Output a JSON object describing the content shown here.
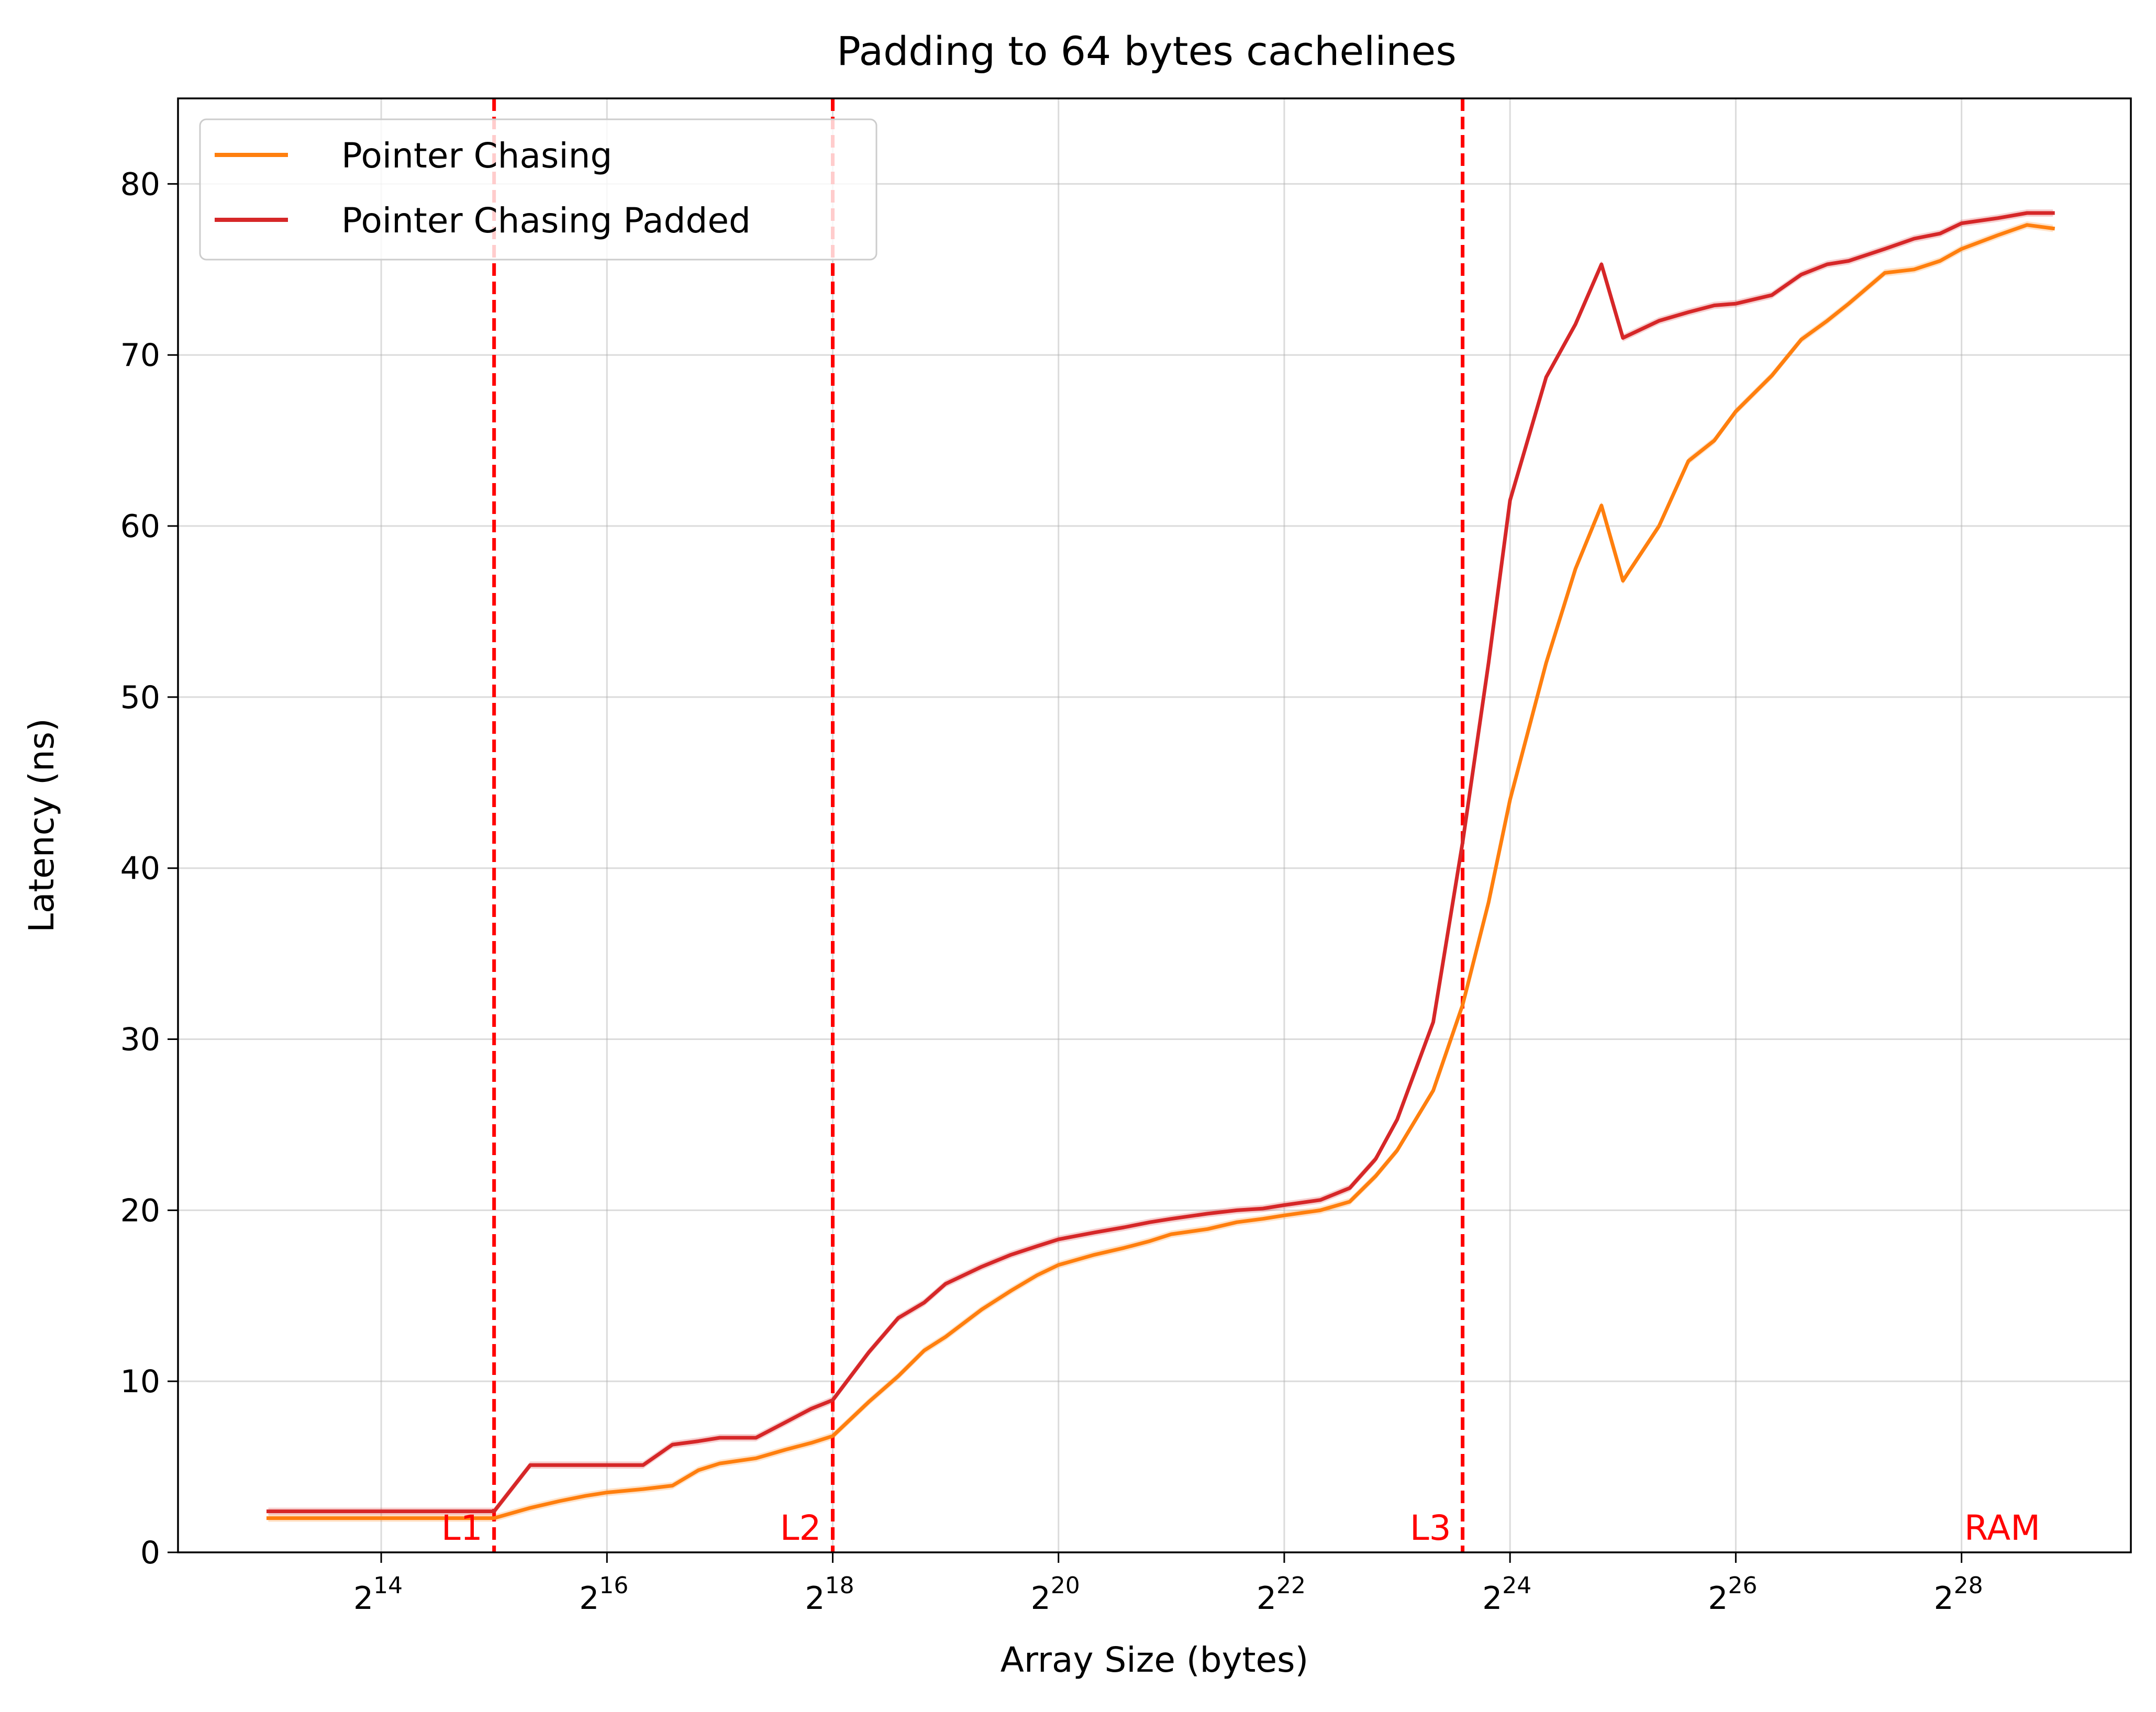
{
  "colors": {
    "pointer_chasing": "#ff7f0e",
    "pointer_chasing_padded": "#d62728",
    "cache_boundary": "#ff0000",
    "grid": "#b0b0b0"
  },
  "chart_data": {
    "type": "line",
    "title": "Padding to 64 bytes cachelines",
    "xlabel": "Array Size (bytes)",
    "ylabel": "Latency (ns)",
    "x_scale": "log2",
    "x_unit": "log2(array size in bytes)",
    "xlim": [
      12.2,
      29.5
    ],
    "ylim": [
      0,
      85
    ],
    "x_ticks": [
      14,
      16,
      18,
      20,
      22,
      24,
      26,
      28
    ],
    "x_tick_base": "2",
    "y_ticks": [
      0,
      10,
      20,
      30,
      40,
      50,
      60,
      70,
      80
    ],
    "grid": true,
    "legend_position": "top-left",
    "cache_boundaries": [
      {
        "label": "L1",
        "x": 15
      },
      {
        "label": "L2",
        "x": 18
      },
      {
        "label": "L3",
        "x": 23.58
      },
      {
        "label": "RAM",
        "x": 28.8
      }
    ],
    "series": [
      {
        "name": "Pointer Chasing",
        "x": [
          13,
          13.32,
          13.58,
          13.81,
          14,
          14.32,
          14.58,
          14.81,
          15,
          15.32,
          15.58,
          15.81,
          16,
          16.32,
          16.58,
          16.81,
          17,
          17.32,
          17.58,
          17.81,
          18,
          18.32,
          18.58,
          18.81,
          19,
          19.32,
          19.58,
          19.81,
          20,
          20.32,
          20.58,
          20.81,
          21,
          21.32,
          21.58,
          21.81,
          22,
          22.32,
          22.58,
          22.81,
          23,
          23.32,
          23.58,
          23.81,
          24,
          24.32,
          24.58,
          24.81,
          25,
          25.32,
          25.58,
          25.81,
          26,
          26.32,
          26.58,
          26.81,
          27,
          27.32,
          27.58,
          27.81,
          28,
          28.32,
          28.58,
          28.81
        ],
        "values": [
          2.0,
          2.0,
          2.0,
          2.0,
          2.0,
          2.0,
          2.0,
          2.0,
          2.0,
          2.6,
          3.0,
          3.3,
          3.5,
          3.7,
          3.9,
          4.8,
          5.2,
          5.5,
          6.0,
          6.4,
          6.8,
          8.8,
          10.3,
          11.8,
          12.6,
          14.2,
          15.3,
          16.2,
          16.8,
          17.4,
          17.8,
          18.2,
          18.6,
          18.9,
          19.3,
          19.5,
          19.7,
          20.0,
          20.5,
          22.0,
          23.5,
          27.0,
          32.0,
          38.0,
          44.0,
          52.0,
          57.5,
          61.2,
          56.8,
          60.0,
          63.8,
          65.0,
          66.7,
          68.8,
          70.9,
          72.0,
          73.0,
          74.8,
          75.0,
          75.5,
          76.2,
          77.0,
          77.6,
          77.4
        ]
      },
      {
        "name": "Pointer Chasing Padded",
        "x": [
          13,
          13.32,
          13.58,
          13.81,
          14,
          14.32,
          14.58,
          14.81,
          15,
          15.32,
          15.58,
          15.81,
          16,
          16.32,
          16.58,
          16.81,
          17,
          17.32,
          17.58,
          17.81,
          18,
          18.32,
          18.58,
          18.81,
          19,
          19.32,
          19.58,
          19.81,
          20,
          20.32,
          20.58,
          20.81,
          21,
          21.32,
          21.58,
          21.81,
          22,
          22.32,
          22.58,
          22.81,
          23,
          23.32,
          23.58,
          23.81,
          24,
          24.32,
          24.58,
          24.81,
          25,
          25.32,
          25.58,
          25.81,
          26,
          26.32,
          26.58,
          26.81,
          27,
          27.32,
          27.58,
          27.81,
          28,
          28.32,
          28.58,
          28.81
        ],
        "values": [
          2.4,
          2.4,
          2.4,
          2.4,
          2.4,
          2.4,
          2.4,
          2.4,
          2.4,
          5.1,
          5.1,
          5.1,
          5.1,
          5.1,
          6.3,
          6.5,
          6.7,
          6.7,
          7.6,
          8.4,
          8.9,
          11.7,
          13.7,
          14.6,
          15.7,
          16.7,
          17.4,
          17.9,
          18.3,
          18.7,
          19.0,
          19.3,
          19.5,
          19.8,
          20.0,
          20.1,
          20.3,
          20.6,
          21.3,
          23.0,
          25.3,
          31.0,
          41.5,
          52.0,
          61.5,
          68.7,
          71.8,
          75.3,
          71.0,
          72.0,
          72.5,
          72.9,
          73.0,
          73.5,
          74.7,
          75.3,
          75.5,
          76.2,
          76.8,
          77.1,
          77.7,
          78.0,
          78.3,
          78.3
        ]
      }
    ]
  }
}
